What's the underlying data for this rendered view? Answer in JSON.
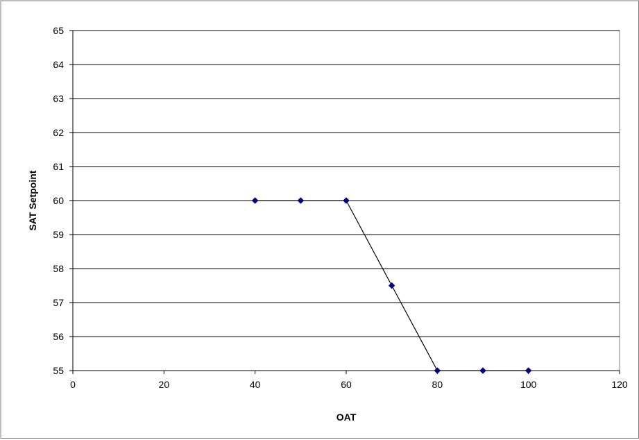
{
  "chart_data": {
    "type": "scatter",
    "title": "",
    "xlabel": "OAT",
    "ylabel": "SAT Setpoint",
    "xlim": [
      0,
      120
    ],
    "ylim": [
      55,
      65
    ],
    "x_ticks": [
      0,
      20,
      40,
      60,
      80,
      100,
      120
    ],
    "y_ticks": [
      55,
      56,
      57,
      58,
      59,
      60,
      61,
      62,
      63,
      64,
      65
    ],
    "grid": "horizontal",
    "legend": "none",
    "series": [
      {
        "x": [
          40,
          50,
          60,
          70,
          80,
          90,
          100
        ],
        "y": [
          60,
          60,
          60,
          57.5,
          55,
          55,
          55
        ],
        "marker": "diamond",
        "line": true,
        "color": "#000080"
      }
    ]
  }
}
